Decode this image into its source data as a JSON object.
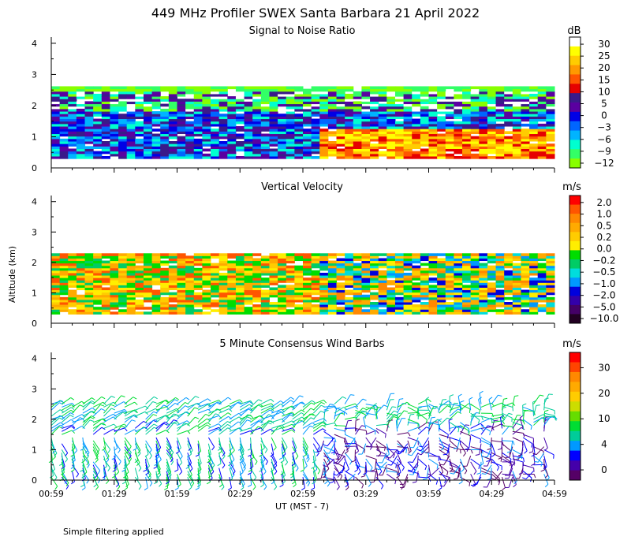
{
  "page_title": "449 MHz Profiler SWEX Santa Barbara 21 April 2022",
  "y_axis_label": "Altitude (km)",
  "x_axis_label": "UT  (MST - 7)",
  "x_tick_labels": [
    "00:59",
    "01:29",
    "01:59",
    "02:29",
    "02:59",
    "03:29",
    "03:59",
    "04:29",
    "04:59"
  ],
  "y_tick_labels": [
    "0",
    "1",
    "2",
    "3",
    "4"
  ],
  "footnote": "Simple filtering applied",
  "chart_data": [
    {
      "type": "heatmap",
      "title": "Signal to Noise Ratio",
      "units": "dB",
      "x_range": [
        "00:59",
        "04:59"
      ],
      "y_range": [
        0,
        4.2
      ],
      "y_ticks": [
        0,
        1,
        2,
        3,
        4
      ],
      "data_altitude_range_km": [
        0.3,
        2.6
      ],
      "colorbar": {
        "labels": [
          "30",
          "25",
          "20",
          "15",
          "10",
          "5",
          "0",
          "−3",
          "−6",
          "−9",
          "−12"
        ],
        "colors": [
          "#ffffff",
          "#ffff00",
          "#ffcc00",
          "#ff9900",
          "#ff5500",
          "#e60000",
          "#3a1a8a",
          "#5a00a0",
          "#0000e6",
          "#0066ff",
          "#00b4ff",
          "#00ffd0",
          "#33ff66",
          "#88ff00"
        ]
      },
      "observations": "Enhanced echoes (10-30 dB) below 1.2 km after 03:05 UT; layer near 2 km km throughout"
    },
    {
      "type": "heatmap",
      "title": "Vertical Velocity",
      "units": "m/s",
      "x_range": [
        "00:59",
        "04:59"
      ],
      "y_range": [
        0,
        4.2
      ],
      "y_ticks": [
        0,
        1,
        2,
        3,
        4
      ],
      "data_altitude_range_km": [
        0.3,
        2.3
      ],
      "colorbar": {
        "labels": [
          "2.0",
          "1.0",
          "0.5",
          "0.2",
          "0.0",
          "−0.2",
          "−0.5",
          "−1.0",
          "−2.0",
          "−5.0",
          "−10.0"
        ],
        "colors": [
          "#ff0000",
          "#ff5500",
          "#ff8800",
          "#ffaa00",
          "#ffcc00",
          "#ffee00",
          "#00dd00",
          "#00cc66",
          "#00dddd",
          "#0099ff",
          "#0000dd",
          "#3300aa",
          "#440066",
          "#220022"
        ]
      }
    },
    {
      "type": "scatter",
      "title": "5 Minute Consensus Wind Barbs",
      "units": "m/s",
      "x_range": [
        "00:59",
        "04:59"
      ],
      "y_range": [
        0,
        4.2
      ],
      "y_ticks": [
        0,
        1,
        2,
        3,
        4
      ],
      "data_altitude_range_km": [
        0.1,
        2.6
      ],
      "colorbar": {
        "labels": [
          "30",
          "20",
          "10",
          "4",
          "0"
        ],
        "colors": [
          "#ff0000",
          "#ff4400",
          "#ff8800",
          "#ffaa00",
          "#ffcc00",
          "#ccdd00",
          "#66dd00",
          "#00dd33",
          "#00cc99",
          "#0099ff",
          "#0000ff",
          "#4400aa",
          "#550066"
        ]
      }
    }
  ]
}
